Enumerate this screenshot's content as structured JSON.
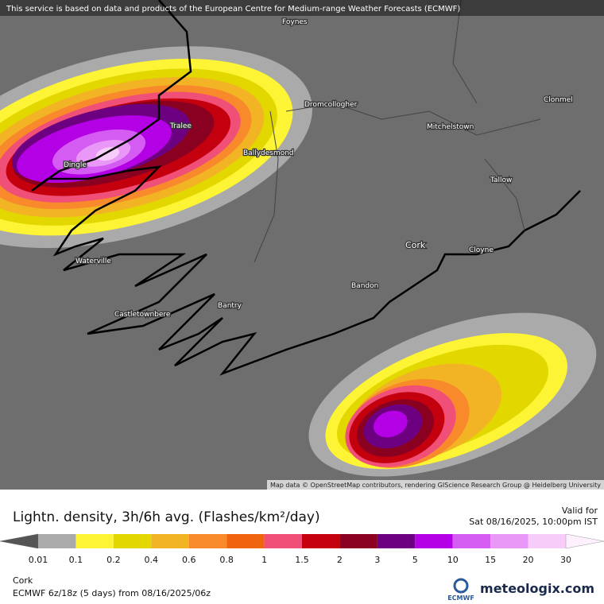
{
  "header": {
    "notice": "This service is based on data and products of the European Centre for Medium-range Weather Forecasts (ECMWF)"
  },
  "map": {
    "places": [
      {
        "label": "Foynes"
      },
      {
        "label": "Dromcollogher"
      },
      {
        "label": "Clonmel"
      },
      {
        "label": "Tralee"
      },
      {
        "label": "Mitchelstown"
      },
      {
        "label": "Ballydesmond"
      },
      {
        "label": "Dingle"
      },
      {
        "label": "Tallow"
      },
      {
        "label": "Cork"
      },
      {
        "label": "Cloyne"
      },
      {
        "label": "Waterville"
      },
      {
        "label": "Bandon"
      },
      {
        "label": "Bantry"
      },
      {
        "label": "Castletownbere"
      }
    ],
    "attribution": "Map data © OpenStreetMap contributors, rendering GIScience Research Group @ Heidelberg University"
  },
  "legend": {
    "title": "Lightn. density, 3h/6h avg. (Flashes/km²/day)",
    "valid_label": "Valid for",
    "valid_time": "Sat 08/16/2025, 10:00pm IST",
    "labels": [
      "0.01",
      "0.1",
      "0.2",
      "0.4",
      "0.6",
      "0.8",
      "1",
      "1.5",
      "2",
      "3",
      "5",
      "10",
      "15",
      "20",
      "30"
    ],
    "colors": [
      "#555555",
      "#aaaaaa",
      "#fcf434",
      "#e2d800",
      "#f2b424",
      "#f88a2c",
      "#f06410",
      "#f05078",
      "#c4000e",
      "#8a0020",
      "#6c0080",
      "#b400e4",
      "#d45cf2",
      "#ea98f8",
      "#f8ccf8",
      "#fff0ff"
    ]
  },
  "footer": {
    "location": "Cork",
    "model": "ECMWF 6z/18z (5 days) from 08/16/2025/06z",
    "logo_ecmwf": "ECMWF",
    "logo": "meteologix.com"
  }
}
